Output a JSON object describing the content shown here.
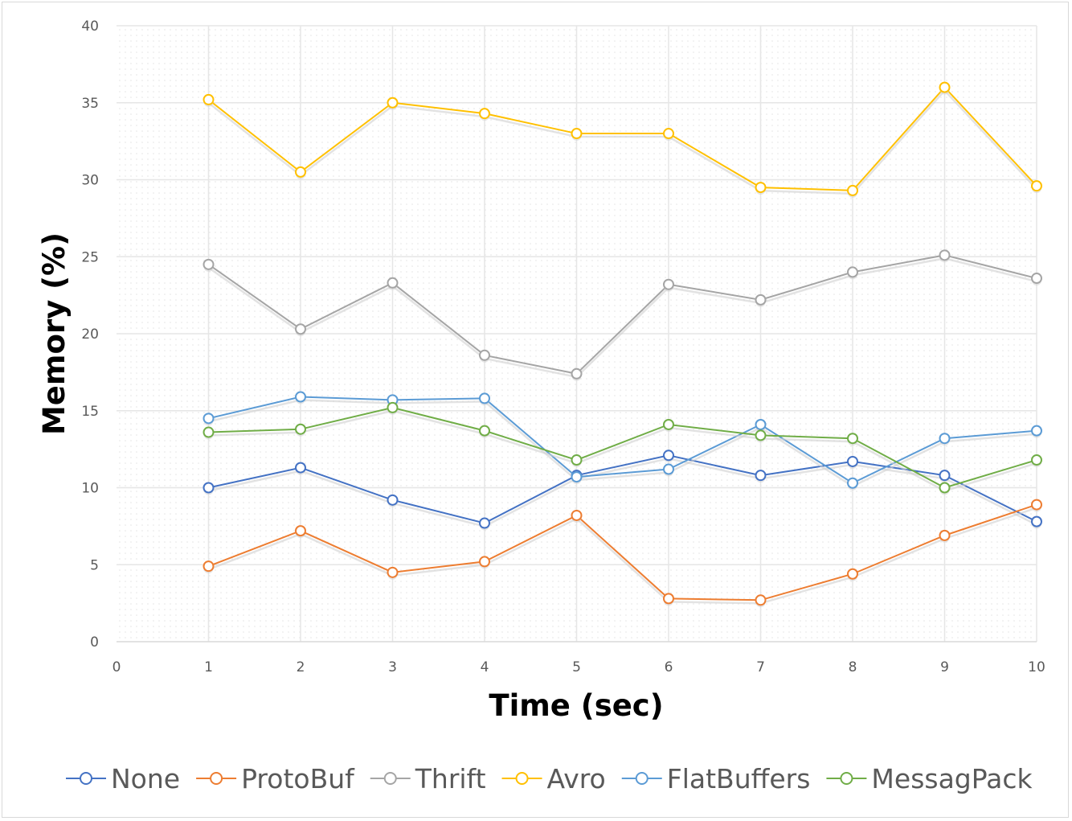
{
  "chart_data": {
    "type": "line",
    "title": "",
    "xlabel": "Time (sec)",
    "ylabel": "Memory (%)",
    "xlim": [
      0,
      10
    ],
    "ylim": [
      0,
      40
    ],
    "x_ticks": [
      "0",
      "1",
      "2",
      "3",
      "4",
      "5",
      "6",
      "7",
      "8",
      "9",
      "10"
    ],
    "y_ticks": [
      "0",
      "5",
      "10",
      "15",
      "20",
      "25",
      "30",
      "35",
      "40"
    ],
    "grid": true,
    "legend_position": "bottom",
    "x": [
      1,
      2,
      3,
      4,
      5,
      6,
      7,
      8,
      9,
      10
    ],
    "series": [
      {
        "name": "None",
        "color": "#4472c4",
        "values": [
          10.0,
          11.3,
          9.2,
          7.7,
          10.8,
          12.1,
          10.8,
          11.7,
          10.8,
          7.8
        ]
      },
      {
        "name": "ProtoBuf",
        "color": "#ed7d31",
        "values": [
          4.9,
          7.2,
          4.5,
          5.2,
          8.2,
          2.8,
          2.7,
          4.4,
          6.9,
          8.9
        ]
      },
      {
        "name": "Thrift",
        "color": "#a5a5a5",
        "values": [
          24.5,
          20.3,
          23.3,
          18.6,
          17.4,
          23.2,
          22.2,
          24.0,
          25.1,
          23.6
        ]
      },
      {
        "name": "Avro",
        "color": "#ffc000",
        "values": [
          35.2,
          30.5,
          35.0,
          34.3,
          33.0,
          33.0,
          29.5,
          29.3,
          36.0,
          29.6
        ]
      },
      {
        "name": "FlatBuffers",
        "color": "#5b9bd5",
        "values": [
          14.5,
          15.9,
          15.7,
          15.8,
          10.7,
          11.2,
          14.1,
          10.3,
          13.2,
          13.7
        ]
      },
      {
        "name": "MessagPack",
        "color": "#70ad47",
        "values": [
          13.6,
          13.8,
          15.2,
          13.7,
          11.8,
          14.1,
          13.4,
          13.2,
          10.0,
          11.8
        ]
      }
    ]
  }
}
